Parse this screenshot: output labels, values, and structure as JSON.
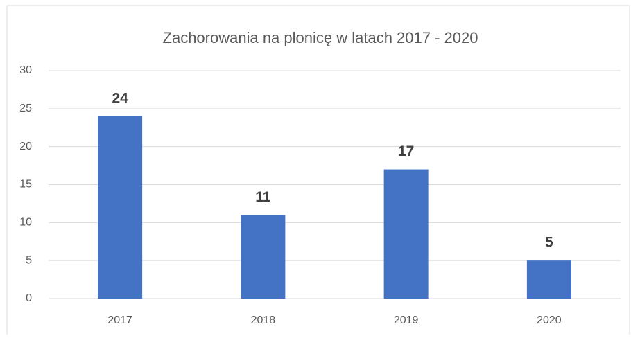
{
  "chart_data": {
    "type": "bar",
    "title": "Zachorowania na płonicę w latach 2017 - 2020",
    "categories": [
      "2017",
      "2018",
      "2019",
      "2020"
    ],
    "values": [
      24,
      11,
      17,
      5
    ],
    "color": "#4472c4",
    "ylim": [
      0,
      30
    ],
    "yticks": [
      0,
      5,
      10,
      15,
      20,
      25,
      30
    ],
    "grid": true
  }
}
